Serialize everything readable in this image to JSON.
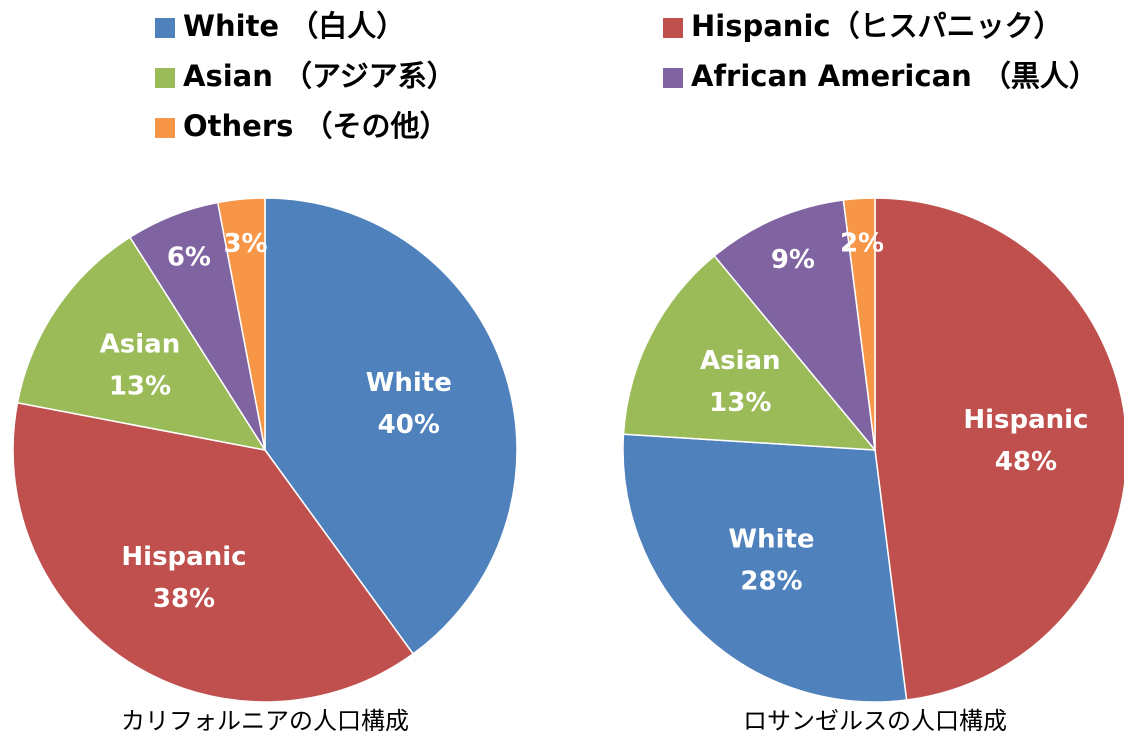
{
  "legend": [
    {
      "name": "White （白人）",
      "color": "#4f81bd"
    },
    {
      "name": "Hispanic（ヒスパニック）",
      "color": "#c0504d"
    },
    {
      "name": "Asian （アジア系）",
      "color": "#9bbb59"
    },
    {
      "name": "African American （黒人）",
      "color": "#8064a2"
    },
    {
      "name": "Others （その他）",
      "color": "#f79646"
    }
  ],
  "chart_data": [
    {
      "type": "pie",
      "title": "カリフォルニアの人口構成",
      "categories": [
        "White",
        "Hispanic",
        "Asian",
        null,
        null
      ],
      "values": [
        40,
        38,
        13,
        6,
        3
      ],
      "value_labels": [
        "40%",
        "38%",
        "13%",
        "6%",
        "3%"
      ],
      "colors": [
        "#4f81bd",
        "#c0504d",
        "#9bbb59",
        "#8064a2",
        "#f79646"
      ]
    },
    {
      "type": "pie",
      "title": "ロサンゼルスの人口構成",
      "categories": [
        "Hispanic",
        "White",
        "Asian",
        null,
        null
      ],
      "values": [
        48,
        28,
        13,
        9,
        2
      ],
      "value_labels": [
        "48%",
        "28%",
        "13%",
        "9%",
        "2%"
      ],
      "colors": [
        "#c0504d",
        "#4f81bd",
        "#9bbb59",
        "#8064a2",
        "#f79646"
      ]
    }
  ]
}
